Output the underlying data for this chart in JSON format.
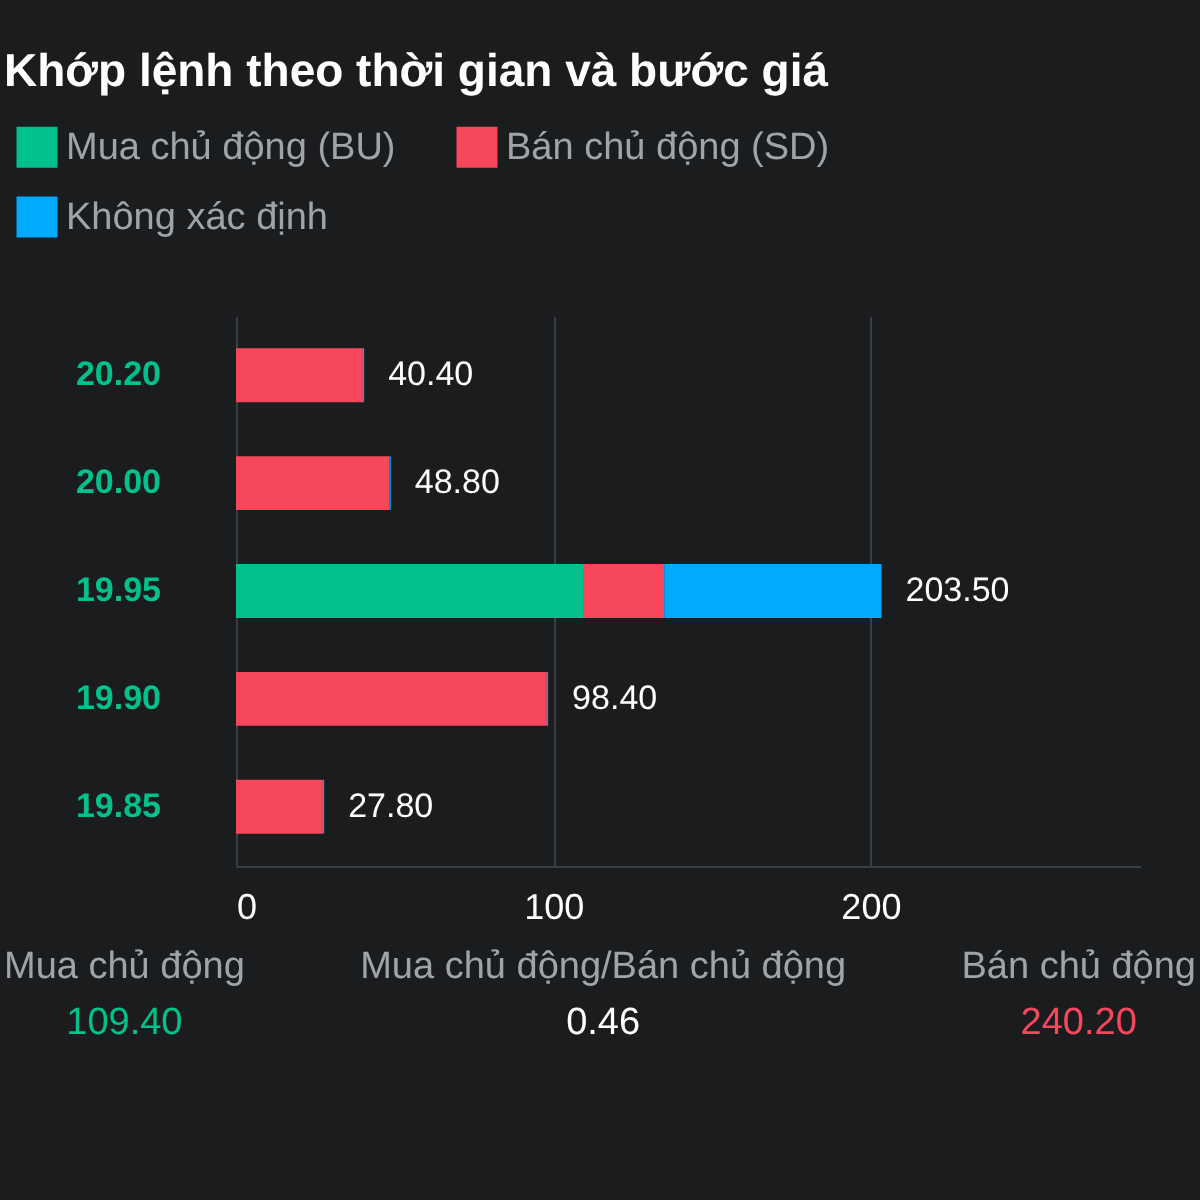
{
  "chart_data": {
    "type": "bar",
    "orientation": "horizontal",
    "stacked": true,
    "title": "Khớp lệnh theo thời gian và bước giá",
    "categories": [
      "20.20",
      "20.00",
      "19.95",
      "19.90",
      "19.85"
    ],
    "series": [
      {
        "name": "Mua chủ động (BU)",
        "color": "#00c08b",
        "values": [
          0,
          0,
          109.4,
          0,
          0
        ]
      },
      {
        "name": "Bán chủ động (SD)",
        "color": "#f6475d",
        "values": [
          40.0,
          48.4,
          25.6,
          98.0,
          27.4
        ]
      },
      {
        "name": "Không xác định",
        "color": "#00aaff",
        "values": [
          0.4,
          0.4,
          68.5,
          0.4,
          0.4
        ]
      }
    ],
    "totals": [
      "40.40",
      "48.80",
      "203.50",
      "98.40",
      "27.80"
    ],
    "xlim": [
      0,
      285
    ],
    "xticks": [
      0,
      100,
      200
    ],
    "grid": "x",
    "legend": "top left",
    "annotations": [
      "Mua chủ động",
      "Mua chủ động/Bán chủ động",
      "Bán chủ động",
      "109.40",
      "0.46",
      "240.20"
    ]
  }
}
